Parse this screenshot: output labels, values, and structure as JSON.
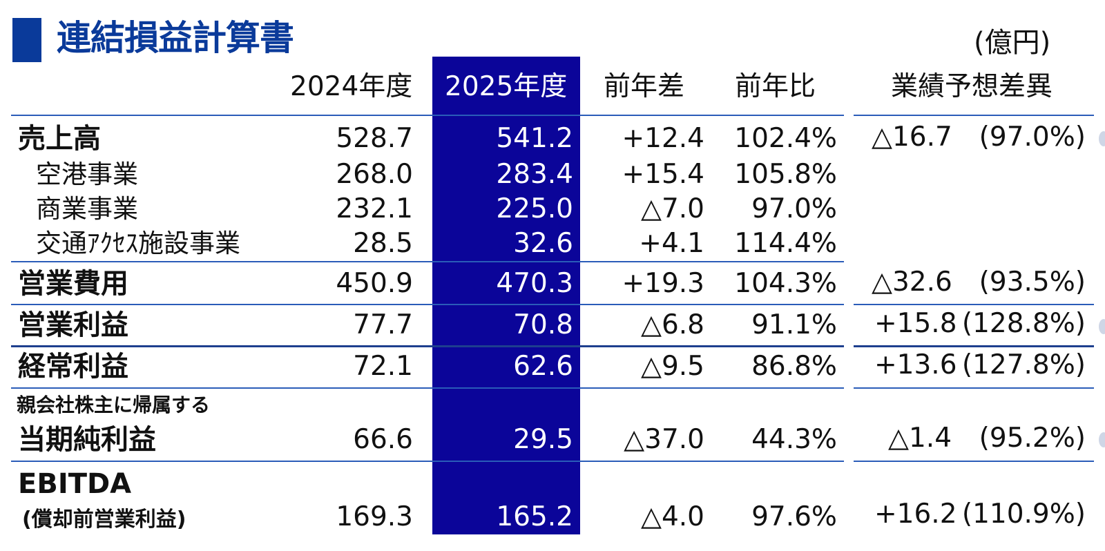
{
  "title": "連結損益計算書",
  "unit": "(億円)",
  "headers": {
    "y2024": "2024年度",
    "y2025": "2025年度",
    "diff": "前年差",
    "ratio": "前年比",
    "forecast": "業績予想差異"
  },
  "rows": {
    "sales": {
      "label": "売上高",
      "y2024": "528.7",
      "y2025": "541.2",
      "diff": "+12.4",
      "ratio": "102.4%",
      "fc_diff": "△16.7",
      "fc_ratio": "(97.0%)"
    },
    "airport": {
      "label": "空港事業",
      "y2024": "268.0",
      "y2025": "283.4",
      "diff": "+15.4",
      "ratio": "105.8%"
    },
    "commercial": {
      "label": "商業事業",
      "y2024": "232.1",
      "y2025": "225.0",
      "diff": "△7.0",
      "ratio": "97.0%"
    },
    "transport": {
      "label": "交通ｱｸｾｽ施設事業",
      "y2024": "28.5",
      "y2025": "32.6",
      "diff": "+4.1",
      "ratio": "114.4%"
    },
    "opex": {
      "label": "営業費用",
      "y2024": "450.9",
      "y2025": "470.3",
      "diff": "+19.3",
      "ratio": "104.3%",
      "fc_diff": "△32.6",
      "fc_ratio": "(93.5%)"
    },
    "op_income": {
      "label": "営業利益",
      "y2024": "77.7",
      "y2025": "70.8",
      "diff": "△6.8",
      "ratio": "91.1%",
      "fc_diff": "+15.8",
      "fc_ratio": "(128.8%)"
    },
    "ordinary": {
      "label": "経常利益",
      "y2024": "72.1",
      "y2025": "62.6",
      "diff": "△9.5",
      "ratio": "86.8%",
      "fc_diff": "+13.6",
      "fc_ratio": "(127.8%)"
    },
    "net_income": {
      "label_top": "親会社株主に帰属する",
      "label": "当期純利益",
      "y2024": "66.6",
      "y2025": "29.5",
      "diff": "△37.0",
      "ratio": "44.3%",
      "fc_diff": "△1.4",
      "fc_ratio": "(95.2%)"
    },
    "ebitda": {
      "label": "EBITDA",
      "label_sub": "(償却前営業利益)",
      "y2024": "169.3",
      "y2025": "165.2",
      "diff": "△4.0",
      "ratio": "97.6%",
      "fc_diff": "+16.2",
      "fc_ratio": "(110.9%)"
    }
  },
  "colors": {
    "title": "#0a3a9a",
    "highlight_column": "#0b0599",
    "rule": "#2a5cb8"
  }
}
